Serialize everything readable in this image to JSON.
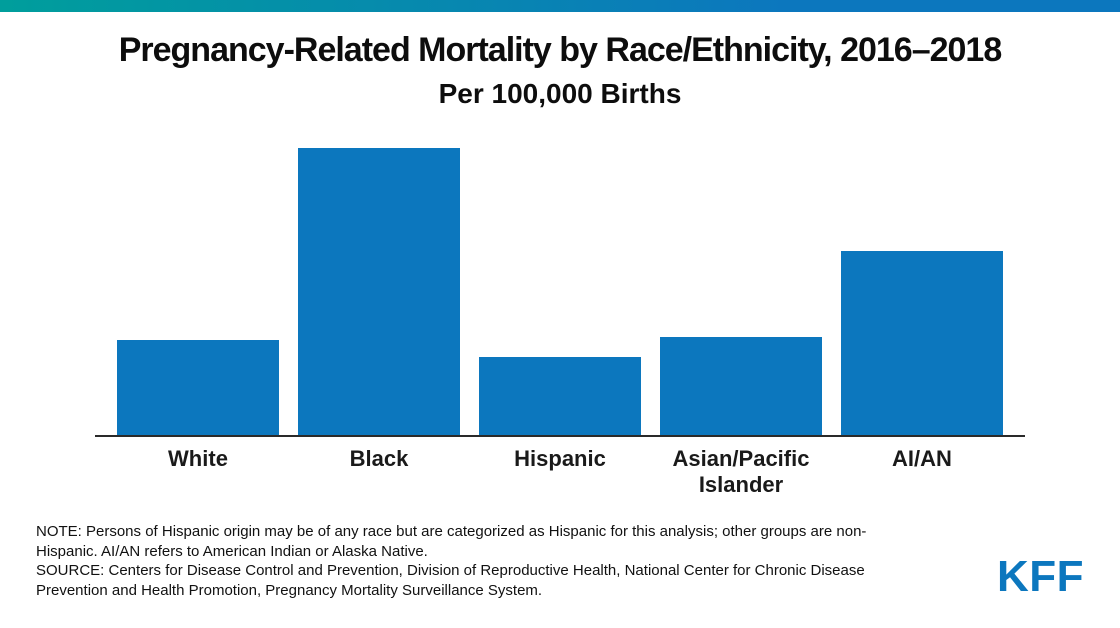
{
  "page": {
    "accent_color": "#0C77BE",
    "stripe_gradient_from": "#009E9C",
    "stripe_gradient_to": "#0C77BE"
  },
  "chart_data": {
    "type": "bar",
    "title": "Pregnancy-Related Mortality by Race/Ethnicity, 2016–2018",
    "subtitle": "Per 100,000 Births",
    "categories": [
      "White",
      "Black",
      "Hispanic",
      "Asian/Pacific Islander",
      "AI/AN"
    ],
    "values": [
      13.7,
      41.4,
      11.2,
      14.1,
      26.5
    ],
    "ylim": [
      0,
      42
    ],
    "bar_color": "#0C77BE",
    "grid": false,
    "legend": false,
    "data_labels": false,
    "xlabel": "",
    "ylabel": ""
  },
  "footer": {
    "note": "NOTE: Persons of Hispanic origin may be of any race but are categorized as Hispanic for this analysis; other groups are non-Hispanic. AI/AN refers to American Indian or Alaska Native.",
    "source": "SOURCE: Centers for Disease Control and Prevention, Division of Reproductive Health, National Center for Chronic Disease Prevention and Health Promotion, Pregnancy Mortality Surveillance System.",
    "logo": "KFF"
  }
}
